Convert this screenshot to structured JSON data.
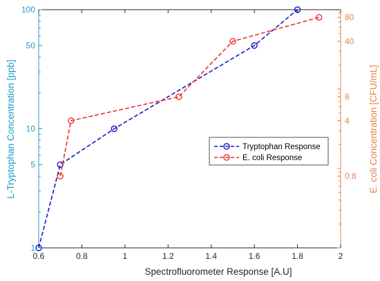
{
  "chart_data": {
    "type": "line",
    "xlabel": "Spectrofluorometer Response [A.U]",
    "ylabel_left": "L-Tryptophan Concentration [ppb]",
    "ylabel_right": "E. coli Concentration [CFU/mL]",
    "xlim": [
      0.6,
      2.0
    ],
    "ylim_left": [
      1,
      100
    ],
    "ylim_right": [
      0.1,
      100
    ],
    "yscale_left": "log",
    "yscale_right": "log",
    "grid": false,
    "legend_position": "right-center",
    "x_ticks": [
      "0.6",
      "0.8",
      "1",
      "1.2",
      "1.4",
      "1.6",
      "1.8",
      "2"
    ],
    "y_left_ticks": [
      "1",
      "5",
      "10",
      "50",
      "100"
    ],
    "y_right_ticks": [
      "0.8",
      "4",
      "8",
      "40",
      "80"
    ],
    "series": [
      {
        "name": "Tryptophan Response",
        "axis": "left",
        "color": "#1414c8",
        "x": [
          0.6,
          0.7,
          0.95,
          1.6,
          1.8
        ],
        "y": [
          1,
          5,
          10,
          50,
          100
        ]
      },
      {
        "name": "E. coli Response",
        "axis": "right",
        "color": "#e8312a",
        "x": [
          0.7,
          0.75,
          1.25,
          1.5,
          1.9
        ],
        "y": [
          0.8,
          4,
          8,
          40,
          80
        ]
      }
    ],
    "colors": {
      "left_axis": "#1a9bc4",
      "right_axis": "#e5824a",
      "frame": "#262626"
    }
  }
}
